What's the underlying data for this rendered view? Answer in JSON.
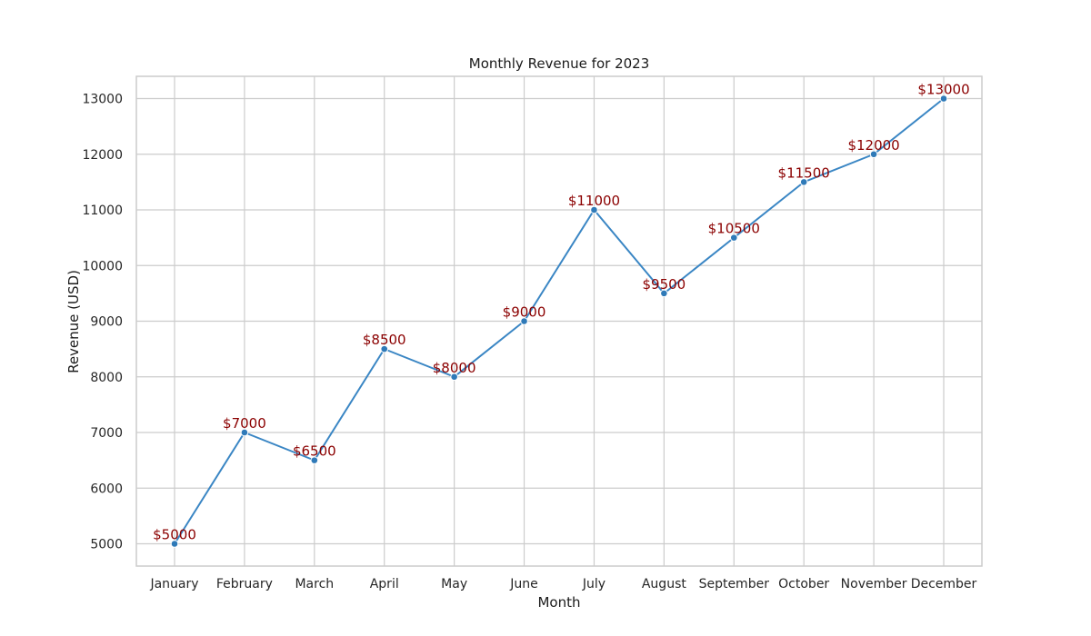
{
  "chart_data": {
    "type": "line",
    "title": "Monthly Revenue for 2023",
    "xlabel": "Month",
    "ylabel": "Revenue (USD)",
    "categories": [
      "January",
      "February",
      "March",
      "April",
      "May",
      "June",
      "July",
      "August",
      "September",
      "October",
      "November",
      "December"
    ],
    "series": [
      {
        "values": [
          5000,
          7000,
          6500,
          8500,
          8000,
          9000,
          11000,
          9500,
          10500,
          11500,
          12000,
          13000
        ]
      }
    ],
    "data_labels": [
      "$5000",
      "$7000",
      "$6500",
      "$8500",
      "$8000",
      "$9000",
      "$11000",
      "$9500",
      "$10500",
      "$11500",
      "$12000",
      "$13000"
    ],
    "ylim": [
      4600,
      13400
    ],
    "yticks": [
      "5000",
      "6000",
      "7000",
      "8000",
      "9000",
      "10000",
      "11000",
      "12000",
      "13000"
    ],
    "grid": true,
    "colors": {
      "line": "#3a86c4",
      "marker": "#2f7ab8",
      "marker_edge": "#ffffff",
      "data_label": "#8b0000",
      "grid": "#cccccc",
      "frame": "#cccccc"
    }
  }
}
